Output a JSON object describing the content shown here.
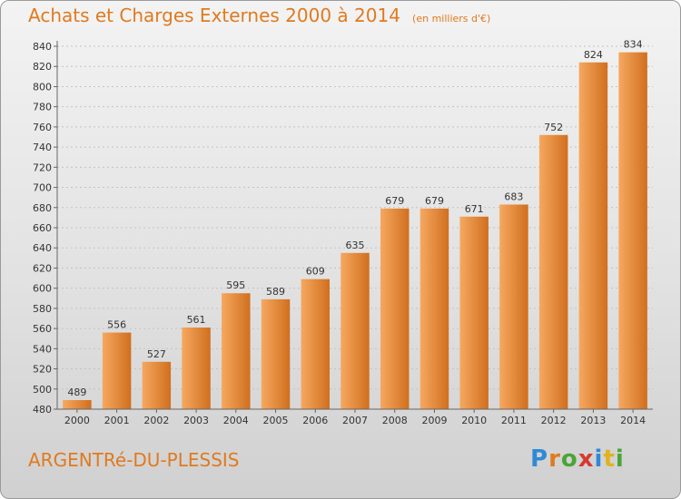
{
  "title": "Achats et Charges Externes 2000 à 2014",
  "unit": "(en milliers d'€)",
  "commune": "ARGENTRé-DU-PLESSIS",
  "logo": {
    "letters": [
      "P",
      "r",
      "o",
      "x",
      "i",
      "t",
      "i"
    ],
    "colors": [
      "#2f8ad6",
      "#e07a1f",
      "#4aa537",
      "#d63a2f",
      "#2f8ad6",
      "#e0b21f",
      "#4aa537"
    ]
  },
  "colors": {
    "accent": "#e07a1f",
    "bar_light": "#f6a860",
    "bar_dark": "#d06f1e"
  },
  "chart_data": {
    "type": "bar",
    "title": "Achats et Charges Externes 2000 à 2014",
    "xlabel": "",
    "ylabel": "",
    "categories": [
      "2000",
      "2001",
      "2002",
      "2003",
      "2004",
      "2005",
      "2006",
      "2007",
      "2008",
      "2009",
      "2010",
      "2011",
      "2012",
      "2013",
      "2014"
    ],
    "values": [
      489,
      556,
      527,
      561,
      595,
      589,
      609,
      635,
      679,
      679,
      671,
      683,
      752,
      824,
      834
    ],
    "ylim": [
      480,
      840
    ],
    "yticks": [
      480,
      500,
      520,
      540,
      560,
      580,
      600,
      620,
      640,
      660,
      680,
      700,
      720,
      740,
      760,
      780,
      800,
      820,
      840
    ],
    "grid": true,
    "legend": "none"
  }
}
